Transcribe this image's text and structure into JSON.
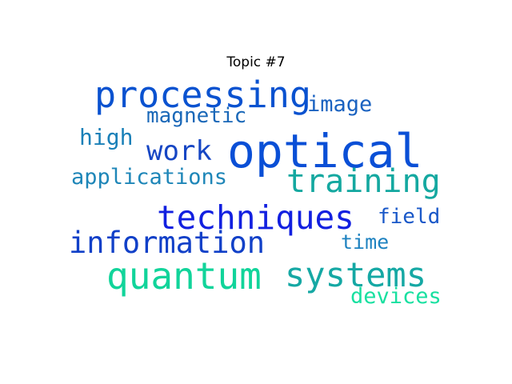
{
  "title": "Topic #7",
  "words": [
    {
      "text": "optical",
      "color": "#0a4fd6"
    },
    {
      "text": "processing",
      "color": "#0a52d0"
    },
    {
      "text": "techniques",
      "color": "#1220e0"
    },
    {
      "text": "information",
      "color": "#1140c8"
    },
    {
      "text": "quantum",
      "color": "#11d49a"
    },
    {
      "text": "systems",
      "color": "#15a8a4"
    },
    {
      "text": "training",
      "color": "#14a8a0"
    },
    {
      "text": "work",
      "color": "#1646c4"
    },
    {
      "text": "image",
      "color": "#1a62c0"
    },
    {
      "text": "magnetic",
      "color": "#1a68b8"
    },
    {
      "text": "applications",
      "color": "#1e86b8"
    },
    {
      "text": "high",
      "color": "#1a80b8"
    },
    {
      "text": "field",
      "color": "#1a58c8"
    },
    {
      "text": "time",
      "color": "#1e82c0"
    },
    {
      "text": "devices",
      "color": "#18e0a0"
    }
  ]
}
